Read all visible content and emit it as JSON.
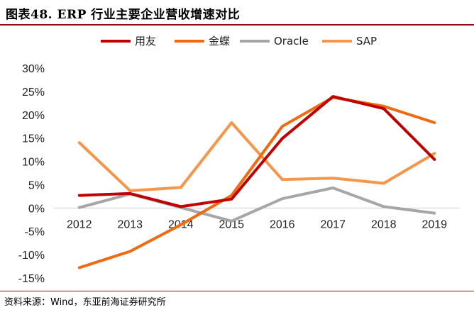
{
  "title": "图表48.  ERP 行业主要企业营收增速对比",
  "source": "资料来源：Wind，东亚前海证券研究所",
  "chart_data": {
    "type": "line",
    "categories": [
      "2012",
      "2013",
      "2014",
      "2015",
      "2016",
      "2017",
      "2018",
      "2019"
    ],
    "ylim": [
      -15,
      30
    ],
    "yticks": [
      -15,
      -10,
      -5,
      0,
      5,
      10,
      15,
      20,
      25,
      30
    ],
    "ytick_labels": [
      "-15%",
      "-10%",
      "-5%",
      "0%",
      "5%",
      "10%",
      "15%",
      "20%",
      "25%",
      "30%"
    ],
    "legend_position": "top",
    "series": [
      {
        "name": "用友",
        "color": "#c00000",
        "values": [
          2.7,
          3.1,
          0.3,
          1.9,
          14.9,
          23.9,
          21.3,
          10.4
        ]
      },
      {
        "name": "金蝶",
        "color": "#f26a10",
        "values": [
          -12.8,
          -9.3,
          -3.6,
          2.7,
          17.5,
          23.7,
          21.8,
          18.3
        ]
      },
      {
        "name": "Oracle",
        "color": "#a6a6a6",
        "values": [
          0.1,
          3.0,
          0.1,
          -2.8,
          2.0,
          4.3,
          0.3,
          -1.1
        ]
      },
      {
        "name": "SAP",
        "color": "#f7954a",
        "values": [
          14.0,
          3.7,
          4.4,
          18.3,
          6.1,
          6.4,
          5.3,
          11.7
        ]
      }
    ]
  }
}
